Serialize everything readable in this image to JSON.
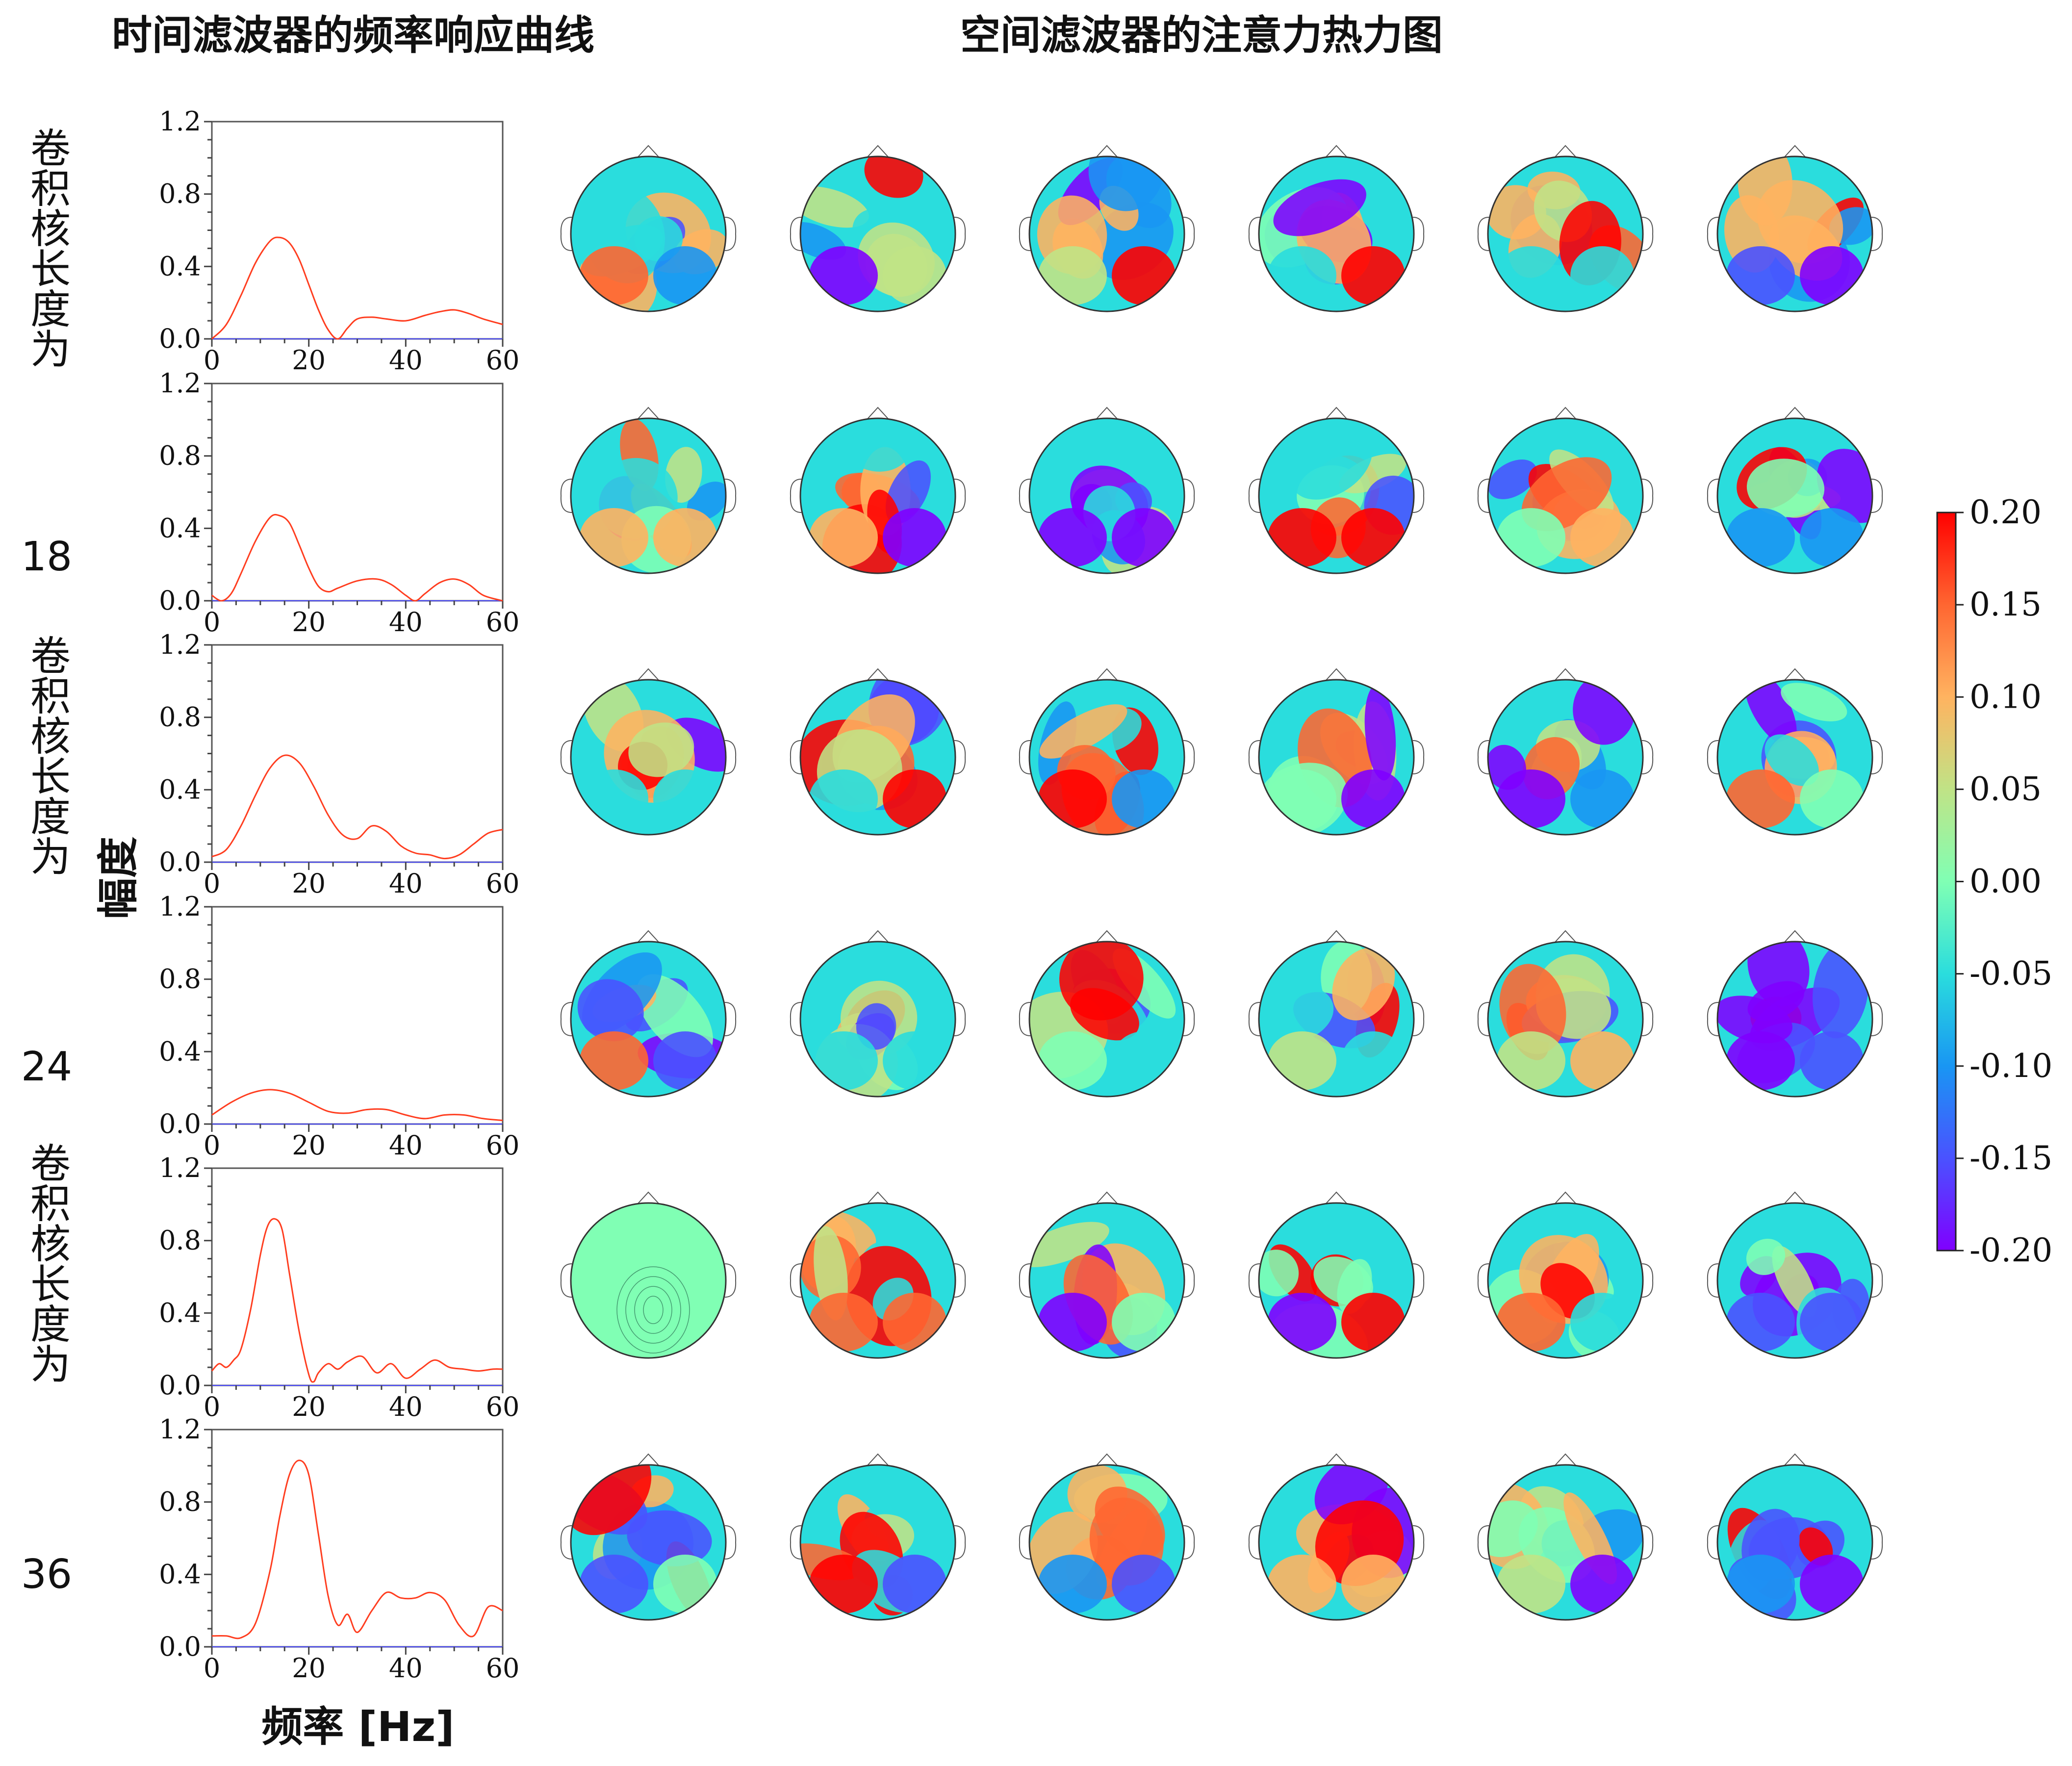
{
  "titles": {
    "left": "时间滤波器的频率响应曲线",
    "right": "空间滤波器的注意力热力图"
  },
  "axis_labels": {
    "x": "频率 [Hz]",
    "y": "幅度"
  },
  "groups": [
    {
      "text": "卷积核长度为",
      "number": "18"
    },
    {
      "text": "卷积核长度为",
      "number": "24"
    },
    {
      "text": "卷积核长度为",
      "number": "36"
    }
  ],
  "colorbar": {
    "ticks": [
      "0.20",
      "0.15",
      "0.10",
      "0.05",
      "0.00",
      "-0.05",
      "-0.10",
      "-0.15",
      "-0.20"
    ],
    "vmin": -0.2,
    "vmax": 0.2,
    "colormap": "rainbow"
  },
  "colors": {
    "curve": "#ff3d1f",
    "zero_line": "#4a4aff",
    "frame": "#555555"
  },
  "chart_data": {
    "type": "line",
    "xlim": [
      0,
      60
    ],
    "ylim": [
      0,
      1.2
    ],
    "x_ticks": [
      0,
      20,
      40,
      60
    ],
    "y_ticks": [
      "0.0",
      "0.4",
      "0.8",
      "1.2"
    ],
    "panels": [
      {
        "x": [
          0,
          3,
          6,
          9,
          12,
          14,
          16,
          18,
          20,
          22,
          24,
          26,
          28,
          30,
          33,
          36,
          40,
          44,
          47,
          50,
          53,
          56,
          60
        ],
        "y": [
          0.0,
          0.08,
          0.24,
          0.42,
          0.54,
          0.56,
          0.53,
          0.44,
          0.3,
          0.16,
          0.05,
          0.0,
          0.06,
          0.11,
          0.12,
          0.11,
          0.1,
          0.13,
          0.15,
          0.16,
          0.14,
          0.11,
          0.08
        ]
      },
      {
        "x": [
          0,
          2,
          4,
          6,
          9,
          12,
          14,
          16,
          18,
          20,
          22,
          24,
          26,
          30,
          34,
          37,
          40,
          42,
          44,
          47,
          50,
          53,
          56,
          60
        ],
        "y": [
          0.03,
          0.0,
          0.04,
          0.15,
          0.33,
          0.46,
          0.47,
          0.43,
          0.31,
          0.18,
          0.08,
          0.05,
          0.07,
          0.11,
          0.12,
          0.09,
          0.03,
          0.0,
          0.04,
          0.1,
          0.12,
          0.09,
          0.03,
          0.0
        ]
      },
      {
        "x": [
          0,
          3,
          6,
          9,
          12,
          15,
          18,
          21,
          24,
          27,
          30,
          33,
          36,
          39,
          42,
          45,
          48,
          51,
          54,
          57,
          60
        ],
        "y": [
          0.03,
          0.07,
          0.2,
          0.37,
          0.52,
          0.59,
          0.55,
          0.42,
          0.26,
          0.15,
          0.13,
          0.2,
          0.17,
          0.09,
          0.05,
          0.04,
          0.02,
          0.04,
          0.1,
          0.16,
          0.18
        ]
      },
      {
        "x": [
          0,
          4,
          8,
          12,
          16,
          20,
          24,
          28,
          32,
          36,
          40,
          44,
          48,
          52,
          56,
          60
        ],
        "y": [
          0.05,
          0.12,
          0.17,
          0.19,
          0.17,
          0.12,
          0.07,
          0.06,
          0.08,
          0.08,
          0.05,
          0.03,
          0.05,
          0.05,
          0.03,
          0.02
        ]
      },
      {
        "x": [
          0,
          1.5,
          3,
          4.5,
          6,
          8,
          10,
          11.5,
          13,
          14.5,
          16,
          18,
          20,
          21,
          22,
          24,
          26,
          28,
          31,
          34,
          37,
          40,
          43,
          46,
          49,
          52,
          55,
          58,
          60
        ],
        "y": [
          0.08,
          0.12,
          0.1,
          0.14,
          0.2,
          0.42,
          0.72,
          0.88,
          0.92,
          0.86,
          0.62,
          0.3,
          0.06,
          0.02,
          0.07,
          0.12,
          0.09,
          0.13,
          0.16,
          0.07,
          0.12,
          0.04,
          0.09,
          0.14,
          0.1,
          0.09,
          0.08,
          0.09,
          0.09
        ]
      },
      {
        "x": [
          0,
          3,
          6,
          9,
          12,
          14,
          16,
          18,
          20,
          22,
          24,
          26,
          28,
          30,
          33,
          36,
          39,
          42,
          45,
          48,
          51,
          54,
          57,
          60
        ],
        "y": [
          0.06,
          0.06,
          0.05,
          0.13,
          0.42,
          0.72,
          0.95,
          1.03,
          0.95,
          0.62,
          0.28,
          0.12,
          0.18,
          0.08,
          0.2,
          0.3,
          0.27,
          0.27,
          0.3,
          0.26,
          0.12,
          0.06,
          0.22,
          0.2
        ]
      }
    ]
  }
}
